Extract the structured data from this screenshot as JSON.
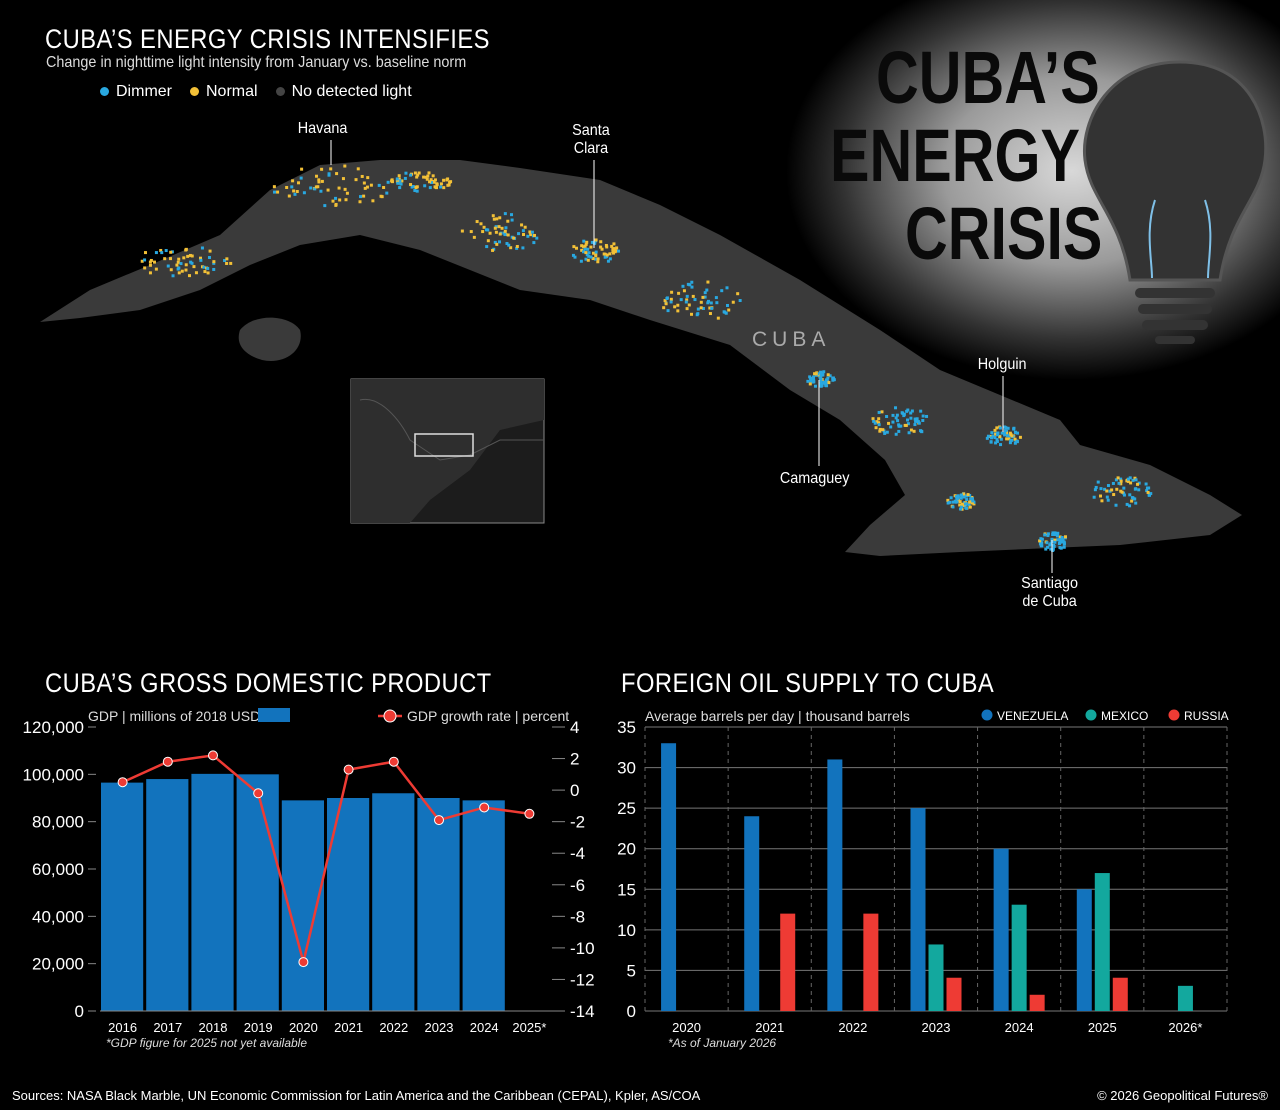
{
  "map": {
    "title": "CUBA’S ENERGY CRISIS INTENSIFIES",
    "subtitle": "Change in nighttime light intensity from January vs. baseline norm",
    "legend": [
      {
        "label": "Dimmer",
        "color": "#29a8e0"
      },
      {
        "label": "Normal",
        "color": "#f2c037"
      },
      {
        "label": "No detected light",
        "color": "#444444"
      }
    ],
    "country_label": "CUBA",
    "cities": {
      "havana": "Havana",
      "santa_clara_1": "Santa",
      "santa_clara_2": "Clara",
      "holguin": "Holguin",
      "camaguey": "Camaguey",
      "santiago_1": "Santiago",
      "santiago_2": "de Cuba"
    }
  },
  "hero": {
    "line1": "CUBA’S",
    "line2": "ENERGY",
    "line3": "CRISIS",
    "icon": "lightbulb-icon"
  },
  "chart_data": [
    {
      "type": "bar",
      "title": "CUBA’S GROSS DOMESTIC PRODUCT",
      "categories": [
        "2016",
        "2017",
        "2018",
        "2019",
        "2020",
        "2021",
        "2022",
        "2023",
        "2024",
        "2025*"
      ],
      "series": [
        {
          "name": "GDP | millions of 2018 USD",
          "type": "bar",
          "axis": "left",
          "color": "#1273bd",
          "values": [
            96500,
            98000,
            100200,
            100000,
            89000,
            90000,
            92000,
            90000,
            89000,
            null
          ]
        },
        {
          "name": "GDP growth rate | percent",
          "type": "line",
          "axis": "right",
          "color": "#ee3b34",
          "values": [
            0.5,
            1.8,
            2.2,
            -0.2,
            -10.9,
            1.3,
            1.8,
            -1.9,
            -1.1,
            -1.5
          ]
        }
      ],
      "ylim": [
        0,
        120000
      ],
      "yticks": [
        "0",
        "20,000",
        "40,000",
        "60,000",
        "80,000",
        "100,000",
        "120,000"
      ],
      "y2lim": [
        -14,
        4
      ],
      "y2ticks": [
        "-14",
        "-12",
        "-10",
        "-8",
        "-6",
        "-4",
        "-2",
        "0",
        "2",
        "4"
      ],
      "note": "*GDP figure for 2025 not yet available"
    },
    {
      "type": "bar",
      "title": "FOREIGN OIL SUPPLY TO CUBA",
      "subtitle": "Average barrels per day | thousand barrels",
      "categories": [
        "2020",
        "2021",
        "2022",
        "2023",
        "2024",
        "2025",
        "2026*"
      ],
      "series": [
        {
          "name": "VENEZUELA",
          "color": "#1273bd",
          "values": [
            33,
            24,
            31,
            25,
            20,
            15,
            0
          ]
        },
        {
          "name": "MEXICO",
          "color": "#13a89e",
          "values": [
            0,
            0,
            0,
            8.2,
            13.1,
            17,
            3.1
          ]
        },
        {
          "name": "RUSSIA",
          "color": "#ee3b34",
          "values": [
            0,
            12,
            12,
            4.1,
            2,
            4.1,
            0
          ]
        }
      ],
      "ylim": [
        0,
        35
      ],
      "yticks": [
        "0",
        "5",
        "10",
        "15",
        "20",
        "25",
        "30",
        "35"
      ],
      "grid": true,
      "legend_position": "top-right",
      "note": "*As of January 2026"
    }
  ],
  "footer": {
    "sources": "Sources: NASA Black Marble, UN Economic Commission for Latin America and the Caribbean (CEPAL), Kpler, AS/COA",
    "copyright": "© 2026 Geopolitical Futures®"
  }
}
